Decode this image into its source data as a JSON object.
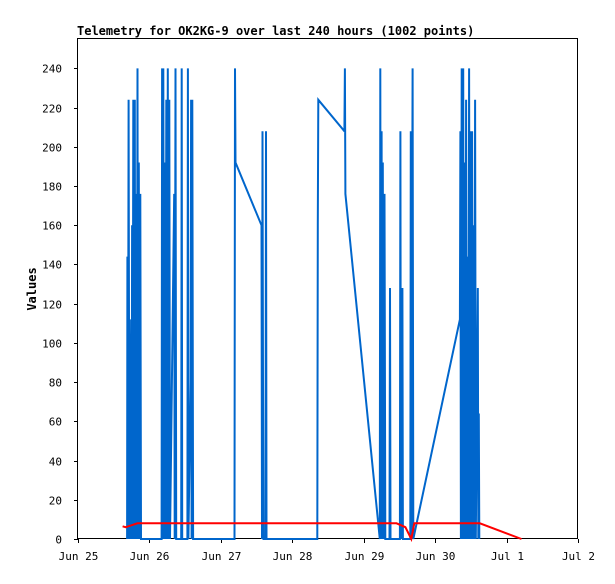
{
  "chart_data": {
    "type": "line",
    "title": "Telemetry for OK2KG-9 over last 240 hours (1002 points)",
    "xlabel": "",
    "ylabel": "Values",
    "xlim": [
      "2025-06-25T00:00",
      "2025-07-02T00:00"
    ],
    "ylim": [
      0,
      255
    ],
    "x_ticks": [
      {
        "label": "Jun 25",
        "t": "2025-06-25T00:00"
      },
      {
        "label": "Jun 26",
        "t": "2025-06-26T00:00"
      },
      {
        "label": "Jun 27",
        "t": "2025-06-27T00:00"
      },
      {
        "label": "Jun 28",
        "t": "2025-06-28T00:00"
      },
      {
        "label": "Jun 29",
        "t": "2025-06-29T00:00"
      },
      {
        "label": "Jun 30",
        "t": "2025-06-30T00:00"
      },
      {
        "label": "Jul 1",
        "t": "2025-07-01T00:00"
      },
      {
        "label": "Jul 2",
        "t": "2025-07-02T00:00"
      }
    ],
    "y_ticks": [
      0,
      20,
      40,
      60,
      80,
      100,
      120,
      140,
      160,
      180,
      200,
      220,
      240
    ],
    "grid": false,
    "series": [
      {
        "color": "#0066cc",
        "points": [
          [
            "2025-06-25T16:30",
            0
          ],
          [
            "2025-06-25T16:35",
            144
          ],
          [
            "2025-06-25T16:45",
            0
          ],
          [
            "2025-06-25T17:00",
            224
          ],
          [
            "2025-06-25T17:10",
            80
          ],
          [
            "2025-06-25T17:20",
            0
          ],
          [
            "2025-06-25T17:35",
            32
          ],
          [
            "2025-06-25T17:50",
            112
          ],
          [
            "2025-06-25T18:00",
            0
          ],
          [
            "2025-06-25T18:10",
            160
          ],
          [
            "2025-06-25T18:20",
            0
          ],
          [
            "2025-06-25T18:35",
            224
          ],
          [
            "2025-06-25T18:50",
            0
          ],
          [
            "2025-06-25T19:05",
            224
          ],
          [
            "2025-06-25T19:15",
            0
          ],
          [
            "2025-06-25T19:30",
            176
          ],
          [
            "2025-06-25T19:45",
            0
          ],
          [
            "2025-06-25T20:00",
            240
          ],
          [
            "2025-06-25T20:10",
            0
          ],
          [
            "2025-06-25T20:25",
            192
          ],
          [
            "2025-06-25T20:40",
            0
          ],
          [
            "2025-06-25T20:55",
            176
          ],
          [
            "2025-06-25T21:10",
            0
          ],
          [
            "2025-06-26T04:05",
            0
          ],
          [
            "2025-06-26T04:15",
            240
          ],
          [
            "2025-06-26T04:25",
            0
          ],
          [
            "2025-06-26T04:40",
            240
          ],
          [
            "2025-06-26T04:55",
            0
          ],
          [
            "2025-06-26T05:10",
            192
          ],
          [
            "2025-06-26T05:25",
            0
          ],
          [
            "2025-06-26T05:40",
            224
          ],
          [
            "2025-06-26T05:55",
            0
          ],
          [
            "2025-06-26T06:10",
            240
          ],
          [
            "2025-06-26T06:25",
            0
          ],
          [
            "2025-06-26T06:40",
            224
          ],
          [
            "2025-06-26T06:55",
            0
          ],
          [
            "2025-06-26T08:20",
            176
          ],
          [
            "2025-06-26T08:30",
            0
          ],
          [
            "2025-06-26T08:45",
            240
          ],
          [
            "2025-06-26T09:00",
            0
          ],
          [
            "2025-06-26T10:40",
            0
          ],
          [
            "2025-06-26T10:50",
            240
          ],
          [
            "2025-06-26T11:00",
            0
          ],
          [
            "2025-06-26T12:45",
            0
          ],
          [
            "2025-06-26T12:55",
            240
          ],
          [
            "2025-06-26T13:05",
            0
          ],
          [
            "2025-06-26T13:50",
            80
          ],
          [
            "2025-06-26T14:00",
            224
          ],
          [
            "2025-06-26T14:10",
            0
          ],
          [
            "2025-06-26T14:25",
            224
          ],
          [
            "2025-06-26T14:40",
            0
          ],
          [
            "2025-06-27T04:35",
            0
          ],
          [
            "2025-06-27T04:45",
            240
          ],
          [
            "2025-06-27T04:55",
            192
          ],
          [
            "2025-06-27T13:40",
            160
          ],
          [
            "2025-06-27T13:50",
            0
          ],
          [
            "2025-06-27T14:00",
            208
          ],
          [
            "2025-06-27T14:10",
            80
          ],
          [
            "2025-06-27T14:20",
            0
          ],
          [
            "2025-06-27T15:00",
            0
          ],
          [
            "2025-06-27T15:10",
            208
          ],
          [
            "2025-06-27T15:20",
            0
          ],
          [
            "2025-06-28T08:25",
            0
          ],
          [
            "2025-06-28T08:35",
            160
          ],
          [
            "2025-06-28T08:45",
            224
          ],
          [
            "2025-06-28T17:30",
            208
          ],
          [
            "2025-06-28T17:40",
            240
          ],
          [
            "2025-06-28T17:50",
            176
          ],
          [
            "2025-06-29T05:25",
            0
          ],
          [
            "2025-06-29T05:35",
            240
          ],
          [
            "2025-06-29T05:45",
            0
          ],
          [
            "2025-06-29T06:00",
            208
          ],
          [
            "2025-06-29T06:10",
            0
          ],
          [
            "2025-06-29T06:25",
            192
          ],
          [
            "2025-06-29T06:40",
            0
          ],
          [
            "2025-06-29T07:00",
            176
          ],
          [
            "2025-06-29T07:15",
            0
          ],
          [
            "2025-06-29T08:40",
            0
          ],
          [
            "2025-06-29T08:50",
            128
          ],
          [
            "2025-06-29T09:00",
            0
          ],
          [
            "2025-06-29T12:10",
            0
          ],
          [
            "2025-06-29T12:20",
            208
          ],
          [
            "2025-06-29T12:30",
            0
          ],
          [
            "2025-06-29T13:00",
            128
          ],
          [
            "2025-06-29T13:10",
            0
          ],
          [
            "2025-06-29T15:40",
            0
          ],
          [
            "2025-06-29T15:50",
            208
          ],
          [
            "2025-06-29T16:00",
            0
          ],
          [
            "2025-06-29T16:25",
            240
          ],
          [
            "2025-06-29T16:40",
            0
          ],
          [
            "2025-06-30T08:20",
            112
          ],
          [
            "2025-06-30T08:30",
            208
          ],
          [
            "2025-06-30T08:40",
            0
          ],
          [
            "2025-06-30T08:55",
            240
          ],
          [
            "2025-06-30T09:10",
            0
          ],
          [
            "2025-06-30T09:25",
            240
          ],
          [
            "2025-06-30T09:40",
            0
          ],
          [
            "2025-06-30T09:55",
            192
          ],
          [
            "2025-06-30T10:10",
            0
          ],
          [
            "2025-06-30T10:25",
            224
          ],
          [
            "2025-06-30T10:40",
            0
          ],
          [
            "2025-06-30T10:55",
            144
          ],
          [
            "2025-06-30T11:10",
            0
          ],
          [
            "2025-06-30T11:25",
            240
          ],
          [
            "2025-06-30T11:40",
            0
          ],
          [
            "2025-06-30T11:55",
            208
          ],
          [
            "2025-06-30T12:10",
            0
          ],
          [
            "2025-06-30T12:25",
            208
          ],
          [
            "2025-06-30T12:40",
            0
          ],
          [
            "2025-06-30T12:55",
            160
          ],
          [
            "2025-06-30T13:10",
            0
          ],
          [
            "2025-06-30T13:25",
            224
          ],
          [
            "2025-06-30T13:40",
            0
          ],
          [
            "2025-06-30T14:20",
            128
          ],
          [
            "2025-06-30T14:30",
            0
          ],
          [
            "2025-06-30T14:40",
            64
          ],
          [
            "2025-06-30T14:50",
            0
          ]
        ]
      },
      {
        "color": "#ff0000",
        "points": [
          [
            "2025-06-25T15:00",
            6.5
          ],
          [
            "2025-06-25T16:00",
            6
          ],
          [
            "2025-06-25T20:00",
            8
          ],
          [
            "2025-06-26T12:00",
            8
          ],
          [
            "2025-06-27T12:00",
            8
          ],
          [
            "2025-06-28T12:00",
            8
          ],
          [
            "2025-06-29T08:00",
            8
          ],
          [
            "2025-06-29T11:00",
            8
          ],
          [
            "2025-06-29T14:00",
            6
          ],
          [
            "2025-06-29T16:00",
            0
          ],
          [
            "2025-06-29T17:00",
            8
          ],
          [
            "2025-06-30T12:00",
            8
          ],
          [
            "2025-06-30T15:00",
            8
          ],
          [
            "2025-07-01T05:00",
            0
          ]
        ]
      }
    ]
  }
}
